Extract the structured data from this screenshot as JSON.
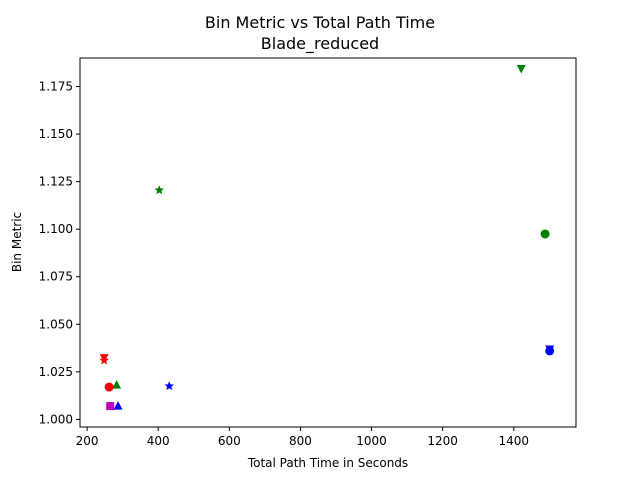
{
  "chart_data": {
    "type": "scatter",
    "title": "Bin Metric vs Total Path Time",
    "subtitle": "Blade_reduced",
    "xlabel": "Total Path Time in Seconds",
    "ylabel": "Bin Metric",
    "xlim": [
      180,
      1575
    ],
    "ylim": [
      0.996,
      1.19
    ],
    "xticks": [
      200,
      400,
      600,
      800,
      1000,
      1200,
      1400
    ],
    "yticks": [
      1.0,
      1.025,
      1.05,
      1.075,
      1.1,
      1.125,
      1.15,
      1.175
    ],
    "xtick_labels": [
      "200",
      "400",
      "600",
      "800",
      "1000",
      "1200",
      "1400"
    ],
    "ytick_labels": [
      "1.000",
      "1.025",
      "1.050",
      "1.075",
      "1.100",
      "1.125",
      "1.150",
      "1.175"
    ],
    "grid": false,
    "legend": "none",
    "points": [
      {
        "x": 1421,
        "y": 1.1845,
        "marker": "triangle-down",
        "color": "#008000"
      },
      {
        "x": 403,
        "y": 1.1205,
        "marker": "star",
        "color": "#008000"
      },
      {
        "x": 1488,
        "y": 1.0975,
        "marker": "circle",
        "color": "#008000"
      },
      {
        "x": 283,
        "y": 1.018,
        "marker": "triangle-up",
        "color": "#008000"
      },
      {
        "x": 248,
        "y": 1.0325,
        "marker": "triangle-down",
        "color": "#ff0000"
      },
      {
        "x": 248,
        "y": 1.031,
        "marker": "star",
        "color": "#ff0000"
      },
      {
        "x": 262,
        "y": 1.017,
        "marker": "circle",
        "color": "#ff0000"
      },
      {
        "x": 265,
        "y": 1.007,
        "marker": "square",
        "color": "#bf00bf"
      },
      {
        "x": 287,
        "y": 1.007,
        "marker": "triangle-up",
        "color": "#0000ff"
      },
      {
        "x": 431,
        "y": 1.0175,
        "marker": "star",
        "color": "#0000ff"
      },
      {
        "x": 1501,
        "y": 1.037,
        "marker": "triangle-down",
        "color": "#0000ff"
      },
      {
        "x": 1501,
        "y": 1.036,
        "marker": "circle",
        "color": "#0000ff"
      }
    ]
  }
}
